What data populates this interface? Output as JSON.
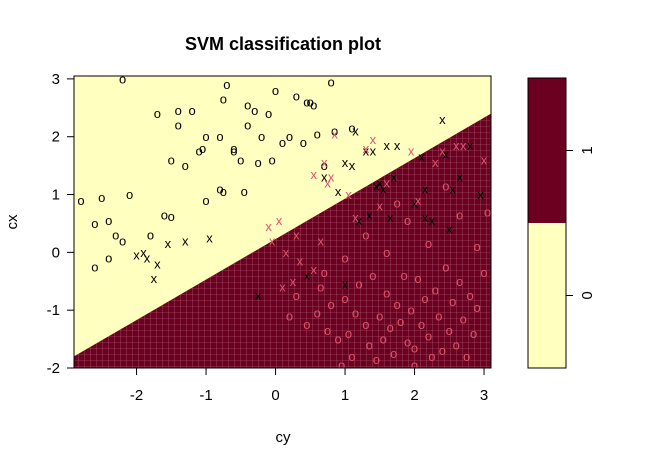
{
  "chart_data": {
    "type": "scatter",
    "title": "SVM classification plot",
    "xlabel": "cy",
    "ylabel": "cx",
    "xlim": [
      -2.9,
      3.1
    ],
    "ylim": [
      -2.0,
      3.05
    ],
    "x_ticks": [
      "-2",
      "-1",
      "0",
      "1",
      "2",
      "3"
    ],
    "y_ticks": [
      "-2",
      "-1",
      "0",
      "1",
      "2",
      "3"
    ],
    "boundary": {
      "description": "class 1 region lies below the line through these points",
      "points": [
        [
          -2.9,
          -1.8
        ],
        [
          3.1,
          2.4
        ]
      ]
    },
    "regions": [
      {
        "class": "0",
        "color": "#FFFFC0"
      },
      {
        "class": "1",
        "color": "#6B0020"
      }
    ],
    "legend": {
      "position": "right",
      "levels": [
        "0",
        "1"
      ],
      "colors": [
        "#FFFFC0",
        "#6B0020"
      ]
    },
    "markers": {
      "support_vector": "x",
      "data_point": "o",
      "class_colors": {
        "0": "#000000",
        "1": "#DF536B"
      }
    },
    "series": [
      {
        "class": "0",
        "symbol": "o",
        "points": [
          [
            -2.8,
            0.9
          ],
          [
            -2.6,
            0.5
          ],
          [
            -2.5,
            0.95
          ],
          [
            -2.4,
            0.55
          ],
          [
            -2.3,
            0.3
          ],
          [
            -2.2,
            0.2
          ],
          [
            -2.1,
            1.0
          ],
          [
            -2.6,
            -0.25
          ],
          [
            -2.4,
            -0.1
          ],
          [
            -2.2,
            3.0
          ],
          [
            -1.7,
            2.4
          ],
          [
            -1.8,
            0.3
          ],
          [
            -1.6,
            0.65
          ],
          [
            -1.5,
            0.62
          ],
          [
            -1.5,
            1.6
          ],
          [
            -1.4,
            2.2
          ],
          [
            -1.4,
            2.45
          ],
          [
            -1.3,
            1.5
          ],
          [
            -1.2,
            2.45
          ],
          [
            -1.1,
            1.75
          ],
          [
            -1.05,
            1.8
          ],
          [
            -1.0,
            0.9
          ],
          [
            -1.0,
            2.0
          ],
          [
            -0.8,
            1.1
          ],
          [
            -0.75,
            1.05
          ],
          [
            -0.8,
            2.0
          ],
          [
            -0.75,
            2.65
          ],
          [
            -0.7,
            2.9
          ],
          [
            -0.6,
            1.8
          ],
          [
            -0.6,
            1.75
          ],
          [
            -0.5,
            1.6
          ],
          [
            -0.45,
            1.05
          ],
          [
            -0.4,
            2.2
          ],
          [
            -0.4,
            2.55
          ],
          [
            -0.3,
            2.45
          ],
          [
            -0.25,
            1.55
          ],
          [
            -0.2,
            2.0
          ],
          [
            -0.1,
            2.4
          ],
          [
            -0.05,
            1.6
          ],
          [
            0.0,
            2.8
          ],
          [
            0.1,
            1.9
          ],
          [
            0.2,
            2.0
          ],
          [
            0.3,
            2.7
          ],
          [
            0.4,
            1.9
          ],
          [
            0.45,
            2.6
          ],
          [
            0.5,
            2.6
          ],
          [
            0.55,
            2.55
          ],
          [
            0.6,
            2.05
          ],
          [
            0.8,
            2.95
          ],
          [
            0.85,
            2.1
          ],
          [
            1.1,
            2.15
          ],
          [
            0.7,
            1.5
          ]
        ]
      },
      {
        "class": "0",
        "symbol": "x",
        "points": [
          [
            -2.0,
            -0.05
          ],
          [
            -1.9,
            0.0
          ],
          [
            -1.85,
            -0.1
          ],
          [
            -1.75,
            -0.45
          ],
          [
            -1.7,
            -0.2
          ],
          [
            -1.55,
            0.15
          ],
          [
            -1.3,
            0.2
          ],
          [
            -0.95,
            0.25
          ],
          [
            -0.25,
            -0.75
          ],
          [
            0.45,
            -0.4
          ],
          [
            0.7,
            1.3
          ],
          [
            0.9,
            1.05
          ],
          [
            1.0,
            1.55
          ],
          [
            1.1,
            1.5
          ],
          [
            1.15,
            2.1
          ],
          [
            1.2,
            0.55
          ],
          [
            1.3,
            1.75
          ],
          [
            1.35,
            0.65
          ],
          [
            1.4,
            1.75
          ],
          [
            1.45,
            1.15
          ],
          [
            1.5,
            1.2
          ],
          [
            1.55,
            1.1
          ],
          [
            1.6,
            1.85
          ],
          [
            1.65,
            0.6
          ],
          [
            1.7,
            1.3
          ],
          [
            1.75,
            1.85
          ],
          [
            2.0,
            0.85
          ],
          [
            2.1,
            1.65
          ],
          [
            2.15,
            1.1
          ],
          [
            2.15,
            0.6
          ],
          [
            2.25,
            0.55
          ],
          [
            2.4,
            2.3
          ],
          [
            2.45,
            1.7
          ],
          [
            2.5,
            0.4
          ],
          [
            2.55,
            1.1
          ],
          [
            2.65,
            1.3
          ],
          [
            2.8,
            1.85
          ],
          [
            2.95,
            1.0
          ],
          [
            1.0,
            -0.55
          ]
        ]
      },
      {
        "class": "1",
        "symbol": "x",
        "points": [
          [
            -0.1,
            0.45
          ],
          [
            0.05,
            0.55
          ],
          [
            0.1,
            -0.6
          ],
          [
            0.15,
            0.0
          ],
          [
            0.25,
            -0.5
          ],
          [
            0.3,
            0.3
          ],
          [
            0.35,
            -0.15
          ],
          [
            0.55,
            1.35
          ],
          [
            0.65,
            0.2
          ],
          [
            0.7,
            1.55
          ],
          [
            0.75,
            1.2
          ],
          [
            0.8,
            1.3
          ],
          [
            0.85,
            2.05
          ],
          [
            1.05,
            1.0
          ],
          [
            1.15,
            0.6
          ],
          [
            1.3,
            1.8
          ],
          [
            1.4,
            1.95
          ],
          [
            1.6,
            1.2
          ],
          [
            1.95,
            1.75
          ],
          [
            2.05,
            0.9
          ],
          [
            2.3,
            1.55
          ],
          [
            2.4,
            1.75
          ],
          [
            2.6,
            1.85
          ],
          [
            2.7,
            1.85
          ],
          [
            3.0,
            1.6
          ],
          [
            -0.05,
            0.2
          ],
          [
            0.55,
            -0.3
          ],
          [
            1.5,
            0.8
          ]
        ]
      },
      {
        "class": "1",
        "symbol": "o",
        "points": [
          [
            0.2,
            -1.1
          ],
          [
            0.3,
            -0.75
          ],
          [
            0.45,
            -1.25
          ],
          [
            0.6,
            -1.05
          ],
          [
            0.65,
            -0.6
          ],
          [
            0.75,
            -1.35
          ],
          [
            0.8,
            -0.9
          ],
          [
            0.9,
            -1.5
          ],
          [
            1.0,
            -0.8
          ],
          [
            1.05,
            -1.4
          ],
          [
            1.1,
            -1.8
          ],
          [
            1.15,
            -1.05
          ],
          [
            1.2,
            -0.55
          ],
          [
            1.3,
            -1.25
          ],
          [
            1.35,
            -1.6
          ],
          [
            1.4,
            -0.4
          ],
          [
            1.5,
            -1.1
          ],
          [
            1.55,
            -1.5
          ],
          [
            1.6,
            -0.7
          ],
          [
            1.65,
            -1.3
          ],
          [
            1.7,
            -1.75
          ],
          [
            1.75,
            -0.9
          ],
          [
            1.8,
            -1.2
          ],
          [
            1.85,
            -0.4
          ],
          [
            1.9,
            -1.55
          ],
          [
            1.95,
            -1.0
          ],
          [
            2.0,
            -1.65
          ],
          [
            2.05,
            -0.45
          ],
          [
            2.1,
            -1.25
          ],
          [
            2.15,
            -0.8
          ],
          [
            2.2,
            -1.45
          ],
          [
            2.25,
            -1.8
          ],
          [
            2.3,
            -0.65
          ],
          [
            2.35,
            -1.1
          ],
          [
            2.4,
            -1.7
          ],
          [
            2.45,
            -0.25
          ],
          [
            2.5,
            -1.35
          ],
          [
            2.55,
            -0.85
          ],
          [
            2.6,
            -1.6
          ],
          [
            2.65,
            -0.5
          ],
          [
            2.7,
            -1.15
          ],
          [
            2.75,
            -1.8
          ],
          [
            2.8,
            -0.75
          ],
          [
            2.85,
            -1.4
          ],
          [
            2.9,
            -0.95
          ],
          [
            3.0,
            -0.35
          ],
          [
            3.05,
            0.7
          ],
          [
            2.2,
            0.15
          ],
          [
            1.9,
            0.55
          ],
          [
            1.6,
            0.0
          ],
          [
            1.3,
            0.3
          ],
          [
            1.0,
            -0.1
          ],
          [
            0.7,
            -0.35
          ],
          [
            2.65,
            0.65
          ],
          [
            2.9,
            0.1
          ],
          [
            1.75,
            0.85
          ],
          [
            2.45,
            1.15
          ],
          [
            1.45,
            -1.85
          ],
          [
            0.95,
            -1.95
          ],
          [
            2.0,
            -1.95
          ]
        ]
      }
    ]
  }
}
